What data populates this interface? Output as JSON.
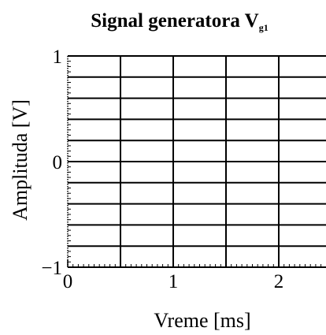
{
  "chart_data": {
    "type": "line",
    "title": "Signal generatora V",
    "title_subscript": "g1",
    "xlabel": "Vreme [ms]",
    "ylabel": "Amplituda [V]",
    "xlim": [
      0,
      2.5
    ],
    "ylim": [
      -1,
      1
    ],
    "x_ticks": [
      {
        "value": 0,
        "label": "0"
      },
      {
        "value": 1,
        "label": "1"
      },
      {
        "value": 2,
        "label": "2"
      }
    ],
    "y_ticks": [
      {
        "value": -1,
        "label": "−1"
      },
      {
        "value": 0,
        "label": "0"
      },
      {
        "value": 1,
        "label": "1"
      }
    ],
    "x_grid_step": 0.5,
    "y_grid_step": 0.2,
    "minor_tick_step_x": 0.05,
    "minor_tick_step_y": 0.05,
    "grid": true,
    "series": []
  }
}
